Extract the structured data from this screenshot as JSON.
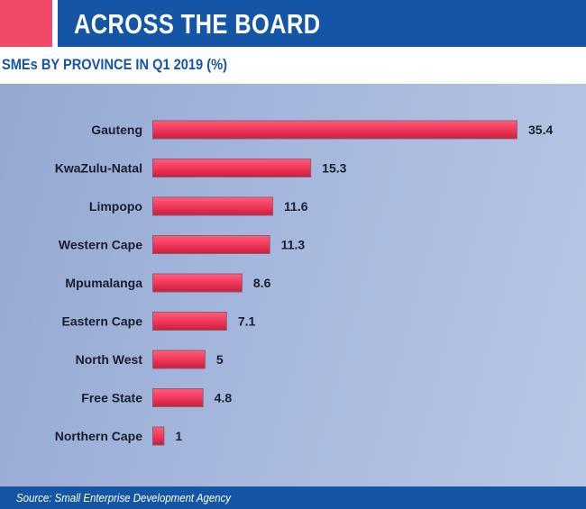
{
  "header": {
    "title": "ACROSS THE BOARD",
    "accent_color": "#f04a68",
    "bar_color": "#1455a6"
  },
  "subtitle": "SMEs BY PROVINCE IN Q1 2019 (%)",
  "footer": {
    "source": "Source: Small Enterprise Development Agency"
  },
  "chart_data": {
    "type": "bar",
    "orientation": "horizontal",
    "title": "SMEs BY PROVINCE IN Q1 2019 (%)",
    "categories": [
      "Gauteng",
      "KwaZulu-Natal",
      "Limpopo",
      "Western Cape",
      "Mpumalanga",
      "Eastern Cape",
      "North West",
      "Free State",
      "Northern Cape"
    ],
    "values": [
      35.4,
      15.3,
      11.6,
      11.3,
      8.6,
      7.1,
      5,
      4.8,
      1
    ],
    "value_labels": [
      "35.4",
      "15.3",
      "11.6",
      "11.3",
      "8.6",
      "7.1",
      "5",
      "4.8",
      "1"
    ],
    "xlim": [
      0,
      35.4
    ],
    "bar_color": "#f2385c",
    "grid": false,
    "legend": "none"
  }
}
